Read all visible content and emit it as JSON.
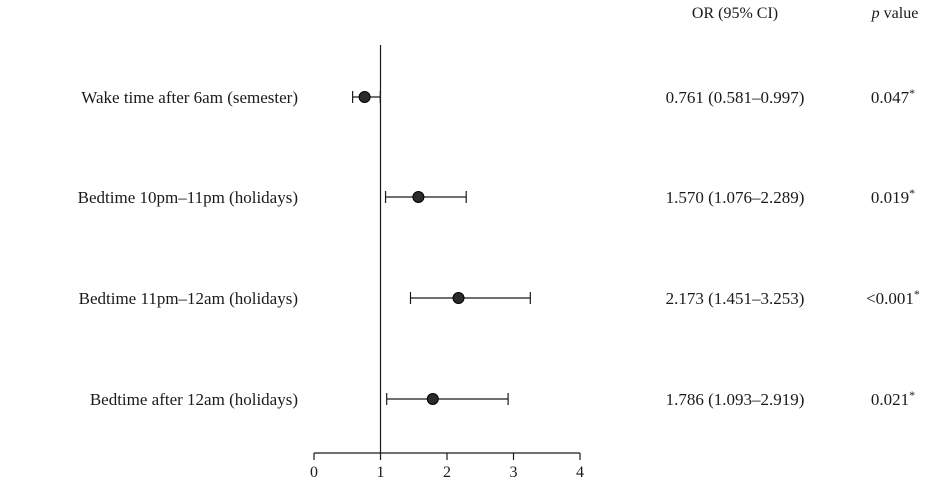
{
  "headers": {
    "or": "OR (95% CI)",
    "p_italic": "p",
    "p_rest": " value"
  },
  "chart_data": {
    "type": "forest",
    "xlim": [
      0,
      4
    ],
    "xticks": [
      0,
      1,
      2,
      3,
      4
    ],
    "reference_line": 1,
    "rows": [
      {
        "label": "Wake time after 6am (semester)",
        "or": 0.761,
        "lo": 0.581,
        "hi": 0.997,
        "or_text": "0.761 (0.581–0.997)",
        "p_text": "0.047",
        "p_star": "*"
      },
      {
        "label": "Bedtime 10pm–11pm (holidays)",
        "or": 1.57,
        "lo": 1.076,
        "hi": 2.289,
        "or_text": "1.570 (1.076–2.289)",
        "p_text": "0.019",
        "p_star": "*"
      },
      {
        "label": "Bedtime 11pm–12am (holidays)",
        "or": 2.173,
        "lo": 1.451,
        "hi": 3.253,
        "or_text": "2.173 (1.451–3.253)",
        "p_text": "<0.001",
        "p_star": "*"
      },
      {
        "label": "Bedtime after 12am (holidays)",
        "or": 1.786,
        "lo": 1.093,
        "hi": 2.919,
        "or_text": "1.786 (1.093–2.919)",
        "p_text": "0.021",
        "p_star": "*"
      }
    ]
  }
}
